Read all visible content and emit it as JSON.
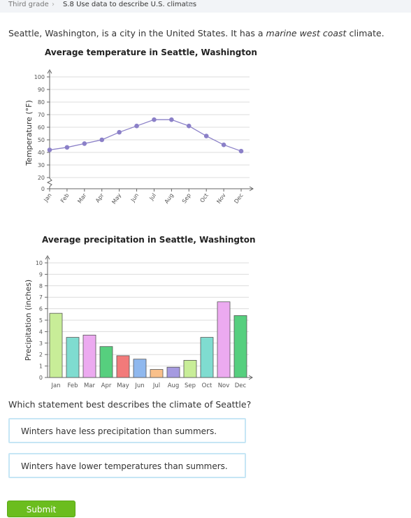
{
  "breadcrumb": {
    "grade": "Third grade",
    "skill": "S.8 Use data to describe U.S. climates",
    "code": "SEI"
  },
  "intro": {
    "prefix": "Seattle, Washington, is a city in the United States. It has a ",
    "climate": "marine west coast",
    "suffix": " climate."
  },
  "chart_data": [
    {
      "type": "line",
      "title": "Average temperature in Seattle, Washington",
      "ylabel": "Temperature (°F)",
      "xlabel": "",
      "categories": [
        "Jan",
        "Feb",
        "Mar",
        "Apr",
        "May",
        "Jun",
        "Jul",
        "Aug",
        "Sep",
        "Oct",
        "Nov",
        "Dec"
      ],
      "values": [
        42,
        44,
        47,
        50,
        56,
        61,
        66,
        66,
        61,
        53,
        46,
        41
      ],
      "y_ticks": [
        "0",
        "20",
        "30",
        "40",
        "50",
        "60",
        "70",
        "80",
        "90",
        "100"
      ],
      "ylim": [
        0,
        100
      ],
      "axis_break": true,
      "grid": true,
      "color": "#8b80c8"
    },
    {
      "type": "bar",
      "title": "Average precipitation in Seattle, Washington",
      "ylabel": "Precipitation (inches)",
      "xlabel": "",
      "categories": [
        "Jan",
        "Feb",
        "Mar",
        "Apr",
        "May",
        "Jun",
        "Jul",
        "Aug",
        "Sep",
        "Oct",
        "Nov",
        "Dec"
      ],
      "values": [
        5.6,
        3.5,
        3.7,
        2.7,
        1.9,
        1.6,
        0.7,
        0.9,
        1.5,
        3.5,
        6.6,
        5.4
      ],
      "y_ticks": [
        "0",
        "1",
        "2",
        "3",
        "4",
        "5",
        "6",
        "7",
        "8",
        "9",
        "10"
      ],
      "ylim": [
        0,
        10
      ],
      "grid": true,
      "colors": [
        "#c8ed98",
        "#7fdcd0",
        "#ecaaf0",
        "#56cf7e",
        "#f27a7a",
        "#8fb8ee",
        "#f9c08a",
        "#a59ae0",
        "#c8ed98",
        "#7fdcd0",
        "#ecaaf0",
        "#56cf7e"
      ]
    }
  ],
  "question": "Which statement best describes the climate of Seattle?",
  "answers": [
    "Winters have less precipitation than summers.",
    "Winters have lower temperatures than summers."
  ],
  "submit_label": "Submit",
  "colors": {
    "submit": "#6bbd1e",
    "answer_border": "#c6e6f5"
  }
}
